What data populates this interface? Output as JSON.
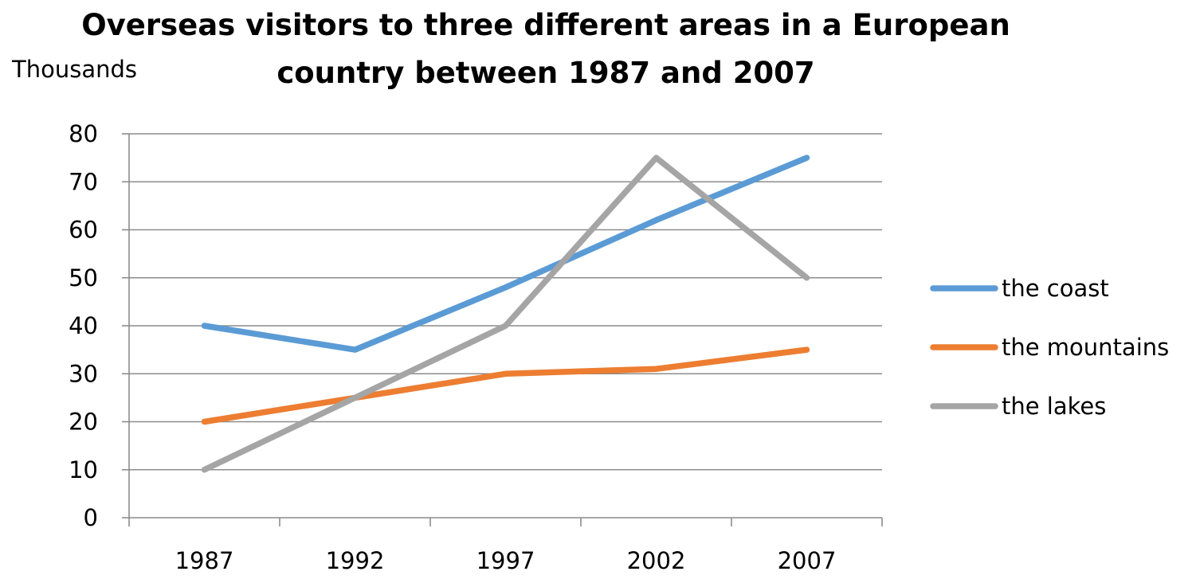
{
  "chart_data": {
    "type": "line",
    "title_lines": [
      "Overseas visitors to three different areas in a European",
      "country between 1987 and 2007"
    ],
    "ylabel": "Thousands",
    "xlabel": "",
    "categories": [
      "1987",
      "1992",
      "1997",
      "2002",
      "2007"
    ],
    "yticks": [
      "0",
      "10",
      "20",
      "30",
      "40",
      "50",
      "60",
      "70",
      "80"
    ],
    "ylim": [
      0,
      80
    ],
    "grid": "horizontal",
    "legend_position": "right",
    "series": [
      {
        "name": "the coast",
        "color": "#5B9BD5",
        "values": [
          40,
          35,
          48,
          62,
          75
        ]
      },
      {
        "name": "the mountains",
        "color": "#ED7D31",
        "values": [
          20,
          25,
          30,
          31,
          35
        ]
      },
      {
        "name": "the lakes",
        "color": "#A5A5A5",
        "values": [
          10,
          25,
          40,
          75,
          50
        ]
      }
    ]
  }
}
